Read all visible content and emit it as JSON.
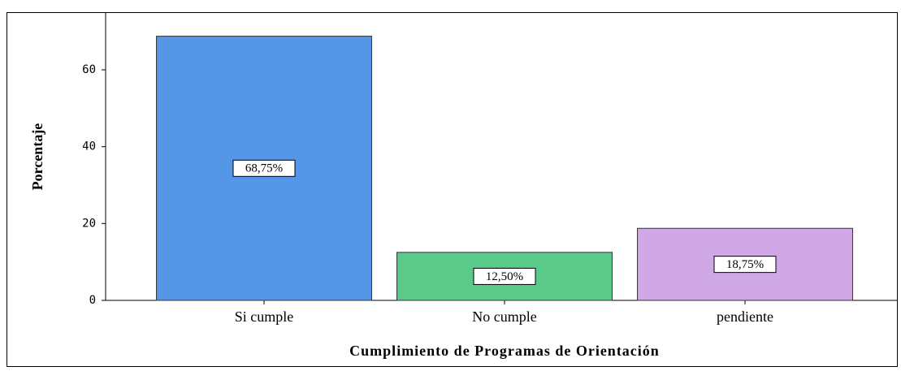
{
  "chart_data": {
    "type": "bar",
    "x_label": "Cumplimiento de Programas de Orientación",
    "y_label": "Porcentaje",
    "categories": [
      "Si cumple",
      "No cumple",
      "pendiente"
    ],
    "values": [
      68.75,
      12.5,
      18.75
    ],
    "value_labels": [
      "68,75%",
      "12,50%",
      "18,75%"
    ],
    "colors": [
      "#5596e6",
      "#5bc98a",
      "#d0a8e6"
    ],
    "ylim": [
      0,
      75
    ],
    "yticks": [
      0,
      20,
      40,
      60
    ]
  }
}
